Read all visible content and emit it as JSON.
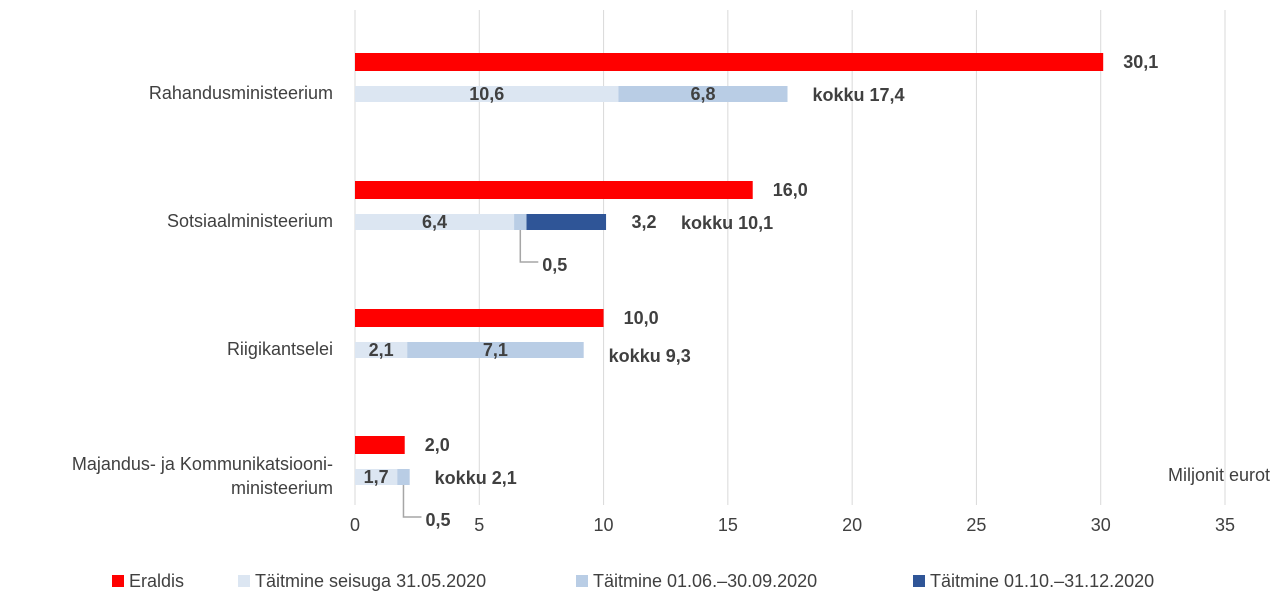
{
  "chart_data": {
    "type": "bar",
    "orientation": "horizontal",
    "categories": [
      "Rahandusministeerium",
      "Sotsiaalministeerium",
      "Riigikantselei",
      "Majandus- ja Kommunikatsiooni-\nministeerium"
    ],
    "series": [
      {
        "name": "Eraldis",
        "color": "#ff0000",
        "values": [
          30.1,
          16.0,
          10.0,
          2.0
        ],
        "value_labels": [
          "30,1",
          "16,0",
          "10,0",
          "2,0"
        ],
        "group": "eraldis"
      },
      {
        "name": "Täitmine seisuga 31.05.2020",
        "color": "#dce6f2",
        "values": [
          10.6,
          6.4,
          2.1,
          1.7
        ],
        "value_labels": [
          "10,6",
          "6,4",
          "2,1",
          "1,7"
        ],
        "group": "taitmine"
      },
      {
        "name": "Täitmine 01.06.–30.09.2020",
        "color": "#b9cde5",
        "values": [
          6.8,
          0.5,
          7.1,
          0.5
        ],
        "value_labels": [
          "6,8",
          "0,5",
          "7,1",
          "0,5"
        ],
        "group": "taitmine"
      },
      {
        "name": "Täitmine 01.10.–31.12.2020",
        "color": "#2f5597",
        "values": [
          null,
          3.2,
          null,
          null
        ],
        "value_labels": [
          null,
          "3,2",
          null,
          null
        ],
        "group": "taitmine"
      }
    ],
    "totals": {
      "values": [
        17.4,
        10.1,
        9.3,
        2.1
      ],
      "value_labels": [
        "kokku 17,4",
        "kokku 10,1",
        "kokku 9,3",
        "kokku 2,1"
      ]
    },
    "x_label": "Miljonit eurot",
    "xlim": [
      0,
      35
    ],
    "xticks": [
      0,
      5,
      10,
      15,
      20,
      25,
      30,
      35
    ],
    "grid": true,
    "legend": "bottom"
  }
}
